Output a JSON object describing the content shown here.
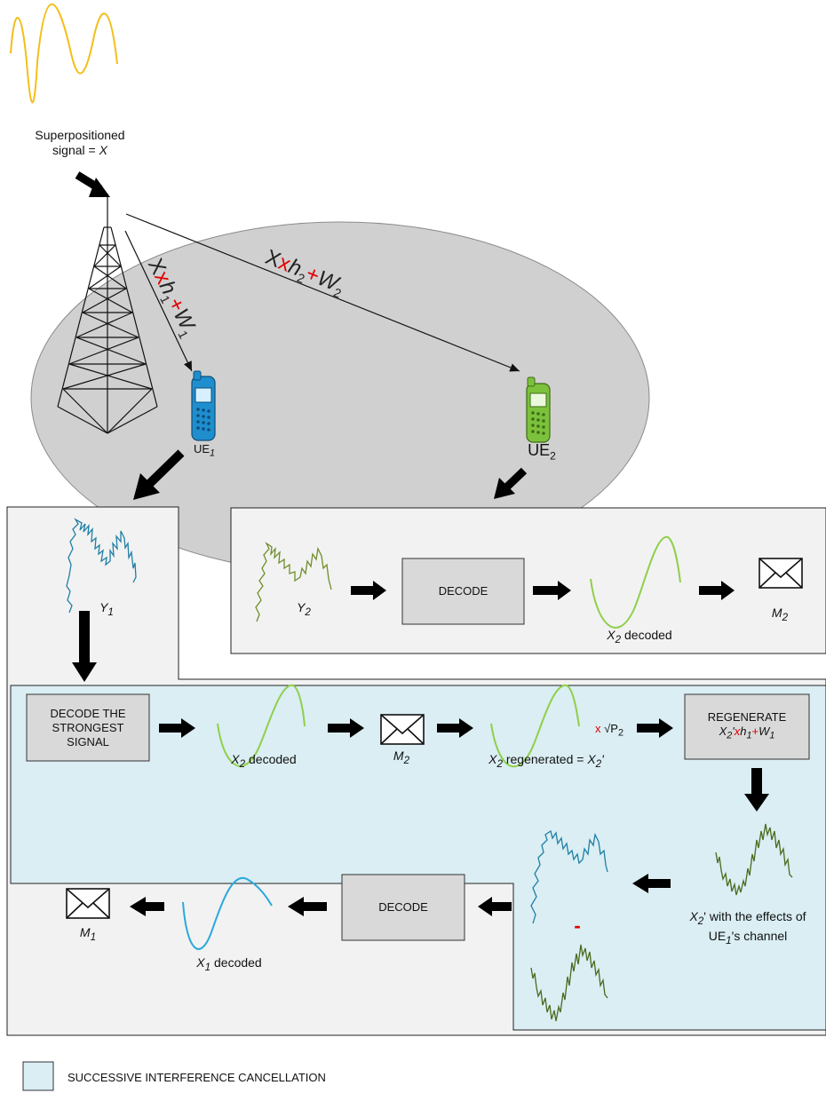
{
  "top": {
    "signal_label_line1": "Superpositioned",
    "signal_label_line2": "signal = ",
    "signal_symbol": "X"
  },
  "channel1": {
    "x": "X",
    "op": "x",
    "h": "h",
    "h_sub": "1",
    "plus": "+",
    "w": "W",
    "w_sub": "1"
  },
  "channel2": {
    "x": "X",
    "op": "x",
    "h": "h",
    "h_sub": "2",
    "plus": "+",
    "w": "W",
    "w_sub": "2"
  },
  "ue1": {
    "label": "UE",
    "sub": "1"
  },
  "ue2": {
    "label": "UE",
    "sub": "2"
  },
  "ue2_row": {
    "received": "Y",
    "received_sub": "2",
    "decode_label": "DECODE",
    "decoded_symbol": "X",
    "decoded_sub": "2",
    "decoded_text": " decoded",
    "message": "M",
    "message_sub": "2"
  },
  "ue1_received": {
    "symbol": "Y",
    "sub": "1"
  },
  "sic_row": {
    "decode_strongest_line1": "DECODE THE",
    "decode_strongest_line2": "STRONGEST",
    "decode_strongest_line3": "SIGNAL",
    "decoded_symbol": "X",
    "decoded_sub": "2",
    "decoded_text": " decoded",
    "message": "M",
    "message_sub": "2",
    "regen_symbol": "X",
    "regen_sub": "2",
    "regen_text": " regenerated = ",
    "regen_result": "X",
    "regen_result_sub": "2",
    "prime": "'",
    "mult": "x",
    "power": "√P",
    "power_sub": "2",
    "regenerate_title": "REGENERATE",
    "regenerate_x": "X",
    "regenerate_x_sub": "2",
    "regenerate_prime": "'",
    "regenerate_op": "x",
    "regenerate_h": "h",
    "regenerate_h_sub": "1",
    "regenerate_plus": "+",
    "regenerate_w": "W",
    "regenerate_w_sub": "1"
  },
  "effects": {
    "symbol": "X",
    "sub": "2",
    "line1_text": "' with the effects of",
    "ue": "UE",
    "ue_sub": "1",
    "line2_text": "'s channel"
  },
  "subtract": {
    "minus": "-"
  },
  "bottom_row": {
    "decode_label": "DECODE",
    "decoded_symbol": "X",
    "decoded_sub": "1",
    "decoded_text": " decoded",
    "message": "M",
    "message_sub": "1"
  },
  "legend": {
    "label": "SUCCESSIVE INTERFERENCE CANCELLATION"
  },
  "colors": {
    "yellow_wave": "#f2bf1a",
    "blue_wave": "#1f7fa6",
    "green_wave": "#6f8f2a",
    "dark_green_wave": "#4a6b1e",
    "light_green_sine": "#8fcf4a",
    "blue_sine": "#2aa9dc",
    "sic_fill": "#daeef3",
    "panel_fill": "#f2f2f2",
    "box_fill": "#d9d9d9",
    "cell_fill": "#d0d0d0",
    "operator_red": "#e00000"
  }
}
